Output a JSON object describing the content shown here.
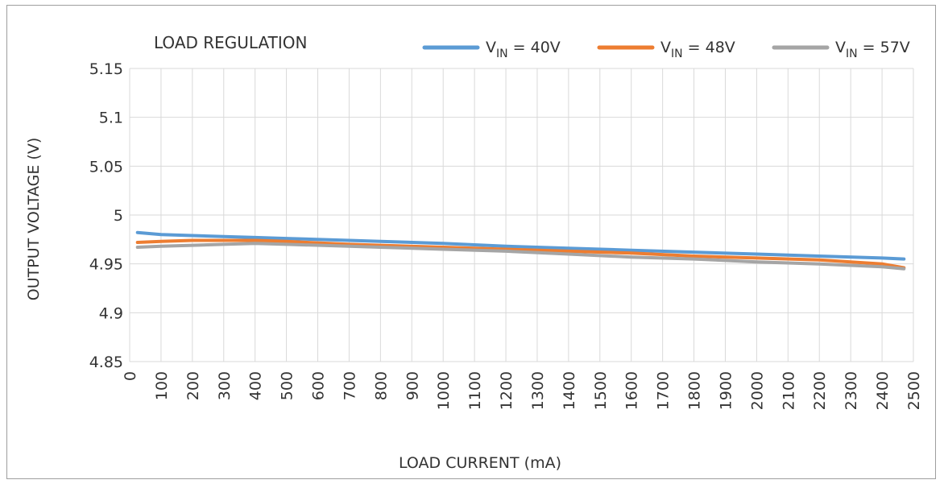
{
  "chart_data": {
    "type": "line",
    "title": "LOAD REGULATION",
    "xlabel": "LOAD CURRENT (mA)",
    "ylabel": "OUTPUT VOLTAGE (V)",
    "xlim": [
      0,
      2500
    ],
    "ylim": [
      4.85,
      5.15
    ],
    "x_ticks": [
      "0",
      "100",
      "200",
      "300",
      "400",
      "500",
      "600",
      "700",
      "800",
      "900",
      "1000",
      "1100",
      "1200",
      "1300",
      "1400",
      "1500",
      "1600",
      "1700",
      "1800",
      "1900",
      "2000",
      "2100",
      "2200",
      "2300",
      "2400",
      "2500"
    ],
    "y_ticks": [
      "4.85",
      "4.9",
      "4.95",
      "5",
      "5.05",
      "5.1",
      "5.15"
    ],
    "grid": true,
    "legend_position": "top-right",
    "series": [
      {
        "name_main": "V",
        "name_sub": "IN",
        "name_rest": " = 40V",
        "color": "#5b9bd5",
        "x": [
          0,
          100,
          200,
          300,
          400,
          500,
          700,
          800,
          1000,
          1200,
          1400,
          1600,
          1800,
          2000,
          2200,
          2400,
          2500
        ],
        "y": [
          4.982,
          4.98,
          4.979,
          4.978,
          4.977,
          4.976,
          4.974,
          4.973,
          4.971,
          4.968,
          4.966,
          4.964,
          4.962,
          4.96,
          4.958,
          4.956,
          4.955
        ]
      },
      {
        "name_main": "V",
        "name_sub": "IN",
        "name_rest": " = 48V",
        "color": "#ed7d31",
        "x": [
          0,
          100,
          200,
          300,
          400,
          500,
          700,
          800,
          1000,
          1200,
          1400,
          1600,
          1800,
          2000,
          2200,
          2400,
          2500
        ],
        "y": [
          4.972,
          4.973,
          4.974,
          4.974,
          4.974,
          4.973,
          4.97,
          4.969,
          4.967,
          4.965,
          4.963,
          4.961,
          4.958,
          4.956,
          4.954,
          4.95,
          4.946
        ]
      },
      {
        "name_main": "V",
        "name_sub": "IN",
        "name_rest": " = 57V",
        "color": "#a5a5a5",
        "x": [
          0,
          100,
          200,
          300,
          400,
          500,
          700,
          800,
          1000,
          1200,
          1400,
          1600,
          1800,
          2000,
          2200,
          2400,
          2500
        ],
        "y": [
          4.967,
          4.968,
          4.969,
          4.97,
          4.971,
          4.97,
          4.968,
          4.967,
          4.965,
          4.963,
          4.96,
          4.957,
          4.955,
          4.952,
          4.95,
          4.947,
          4.945
        ]
      }
    ]
  }
}
